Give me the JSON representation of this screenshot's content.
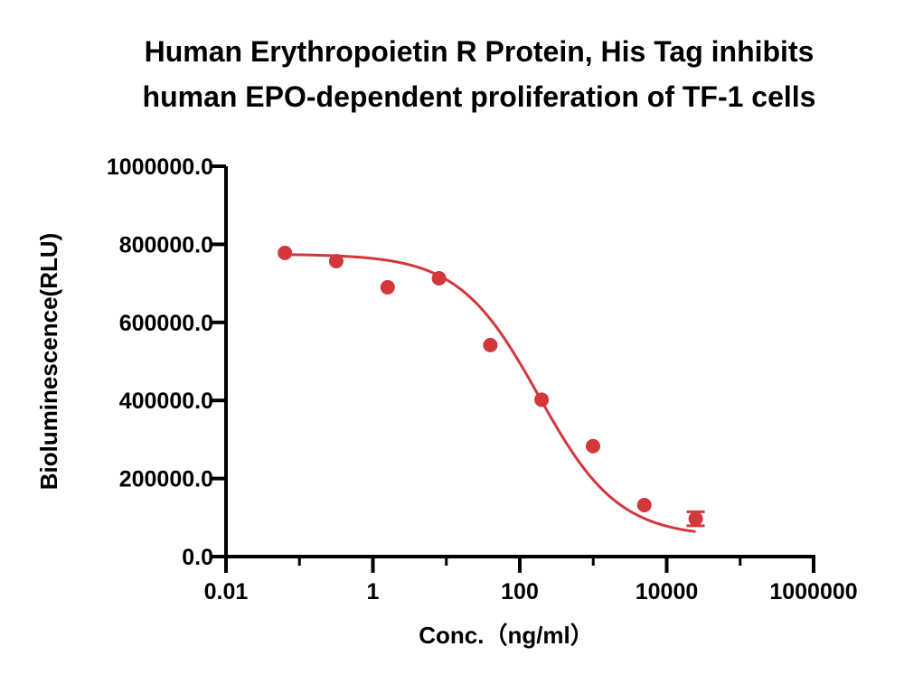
{
  "chart_data": {
    "type": "scatter",
    "title_lines": [
      "Human Erythropoietin R Protein, His Tag inhibits",
      "human EPO-dependent proliferation of TF-1 cells"
    ],
    "xlabel": "Conc.（ng/ml）",
    "ylabel": "Bioluminescence(RLU)",
    "x_scale": "log10",
    "xlim": [
      0.01,
      1000000
    ],
    "ylim": [
      0,
      1000000
    ],
    "x_ticks": [
      0.01,
      1,
      100,
      10000,
      1000000
    ],
    "x_tick_labels": [
      "0.01",
      "1",
      "100",
      "10000",
      "1000000"
    ],
    "y_ticks": [
      0,
      200000,
      400000,
      600000,
      800000,
      1000000
    ],
    "y_tick_labels": [
      "0.0",
      "200000.0",
      "400000.0",
      "600000.0",
      "800000.0",
      "1000000.0"
    ],
    "grid": false,
    "color": "#d2373c",
    "series": [
      {
        "points": [
          {
            "x": 0.0635,
            "y": 778000
          },
          {
            "x": 0.317,
            "y": 757000
          },
          {
            "x": 1.587,
            "y": 690000
          },
          {
            "x": 7.94,
            "y": 713000
          },
          {
            "x": 39.7,
            "y": 542000
          },
          {
            "x": 198,
            "y": 402000
          },
          {
            "x": 992,
            "y": 283000
          },
          {
            "x": 4960,
            "y": 132000
          },
          {
            "x": 24800,
            "y": 97000,
            "y_err": 18000
          }
        ]
      }
    ],
    "fit": {
      "model": "4PL",
      "top": 775000,
      "bottom": 50000,
      "ec50": 180,
      "hill": 0.8,
      "x_range": [
        0.0635,
        24800
      ]
    }
  }
}
